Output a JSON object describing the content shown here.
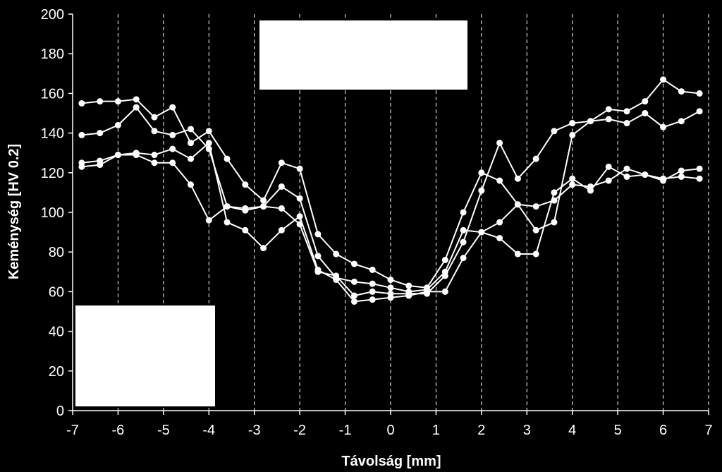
{
  "chart_data": {
    "type": "line",
    "xlabel": "Távolság [mm]",
    "ylabel": "Keménység [HV 0.2]",
    "xlim": [
      -7,
      7
    ],
    "ylim": [
      0,
      200
    ],
    "xticks": [
      -7,
      -6,
      -5,
      -4,
      -3,
      -2,
      -1,
      0,
      1,
      2,
      3,
      4,
      5,
      6,
      7
    ],
    "yticks": [
      0,
      20,
      40,
      60,
      80,
      100,
      120,
      140,
      160,
      180,
      200
    ],
    "grid": "vertical",
    "colors": {
      "background": "#000000",
      "line": "#ffffff",
      "grid": "#ffffff"
    },
    "series": [
      {
        "points": [
          [
            -6.8,
            155
          ],
          [
            -6.4,
            156
          ],
          [
            -6.0,
            156
          ],
          [
            -5.6,
            157
          ],
          [
            -5.2,
            148
          ],
          [
            -4.8,
            153
          ],
          [
            -4.4,
            135
          ],
          [
            -4.0,
            141
          ],
          [
            -3.6,
            127
          ],
          [
            -3.2,
            114
          ],
          [
            -2.8,
            106
          ],
          [
            -2.4,
            125
          ],
          [
            -2.0,
            122
          ],
          [
            -1.6,
            89
          ],
          [
            -1.2,
            79
          ],
          [
            -0.8,
            74
          ],
          [
            -0.4,
            71
          ],
          [
            0.0,
            66
          ],
          [
            0.4,
            63
          ],
          [
            0.8,
            62
          ],
          [
            1.2,
            76
          ],
          [
            1.6,
            100
          ],
          [
            2.0,
            120
          ],
          [
            2.4,
            116
          ],
          [
            2.8,
            104
          ],
          [
            3.2,
            91
          ],
          [
            3.6,
            95
          ],
          [
            4.0,
            139
          ],
          [
            4.4,
            146
          ],
          [
            4.8,
            152
          ],
          [
            5.2,
            151
          ],
          [
            5.6,
            156
          ],
          [
            6.0,
            167
          ],
          [
            6.4,
            161
          ],
          [
            6.8,
            160
          ]
        ]
      },
      {
        "points": [
          [
            -6.8,
            139
          ],
          [
            -6.4,
            140
          ],
          [
            -6.0,
            144
          ],
          [
            -5.6,
            153
          ],
          [
            -5.2,
            141
          ],
          [
            -4.8,
            139
          ],
          [
            -4.4,
            142
          ],
          [
            -4.0,
            132
          ],
          [
            -3.6,
            103
          ],
          [
            -3.2,
            102
          ],
          [
            -2.8,
            103
          ],
          [
            -2.4,
            113
          ],
          [
            -2.0,
            107
          ],
          [
            -1.6,
            78
          ],
          [
            -1.2,
            67
          ],
          [
            -0.8,
            65
          ],
          [
            -0.4,
            64
          ],
          [
            0.0,
            62
          ],
          [
            0.4,
            60
          ],
          [
            0.8,
            61
          ],
          [
            1.2,
            70
          ],
          [
            1.6,
            91
          ],
          [
            2.0,
            90
          ],
          [
            2.4,
            95
          ],
          [
            2.8,
            104
          ],
          [
            3.2,
            103
          ],
          [
            3.6,
            106
          ],
          [
            4.0,
            114
          ],
          [
            4.4,
            113
          ],
          [
            4.8,
            116
          ],
          [
            5.2,
            122
          ],
          [
            5.6,
            119
          ],
          [
            6.0,
            116
          ],
          [
            6.4,
            121
          ],
          [
            6.8,
            122
          ]
        ]
      },
      {
        "points": [
          [
            -6.8,
            125
          ],
          [
            -6.4,
            126
          ],
          [
            -6.0,
            129
          ],
          [
            -5.6,
            129
          ],
          [
            -5.2,
            125
          ],
          [
            -4.8,
            125
          ],
          [
            -4.4,
            114
          ],
          [
            -4.0,
            96
          ],
          [
            -3.6,
            103
          ],
          [
            -3.2,
            101
          ],
          [
            -2.8,
            103
          ],
          [
            -2.4,
            102
          ],
          [
            -2.0,
            94
          ],
          [
            -1.6,
            70
          ],
          [
            -1.2,
            68
          ],
          [
            -0.8,
            58
          ],
          [
            -0.4,
            60
          ],
          [
            0.0,
            59
          ],
          [
            0.4,
            59
          ],
          [
            0.8,
            59
          ],
          [
            1.2,
            68
          ],
          [
            1.6,
            85
          ],
          [
            2.0,
            111
          ],
          [
            2.4,
            135
          ],
          [
            2.8,
            117
          ],
          [
            3.2,
            127
          ],
          [
            3.6,
            141
          ],
          [
            4.0,
            145
          ],
          [
            4.4,
            146
          ],
          [
            4.8,
            147
          ],
          [
            5.2,
            145
          ],
          [
            5.6,
            150
          ],
          [
            6.0,
            143
          ],
          [
            6.4,
            146
          ],
          [
            6.8,
            151
          ]
        ]
      },
      {
        "points": [
          [
            -6.8,
            123
          ],
          [
            -6.4,
            124
          ],
          [
            -6.0,
            129
          ],
          [
            -5.6,
            130
          ],
          [
            -5.2,
            129
          ],
          [
            -4.8,
            132
          ],
          [
            -4.4,
            127
          ],
          [
            -4.0,
            135
          ],
          [
            -3.6,
            95
          ],
          [
            -3.2,
            91
          ],
          [
            -2.8,
            82
          ],
          [
            -2.4,
            91
          ],
          [
            -2.0,
            98
          ],
          [
            -1.6,
            71
          ],
          [
            -1.2,
            66
          ],
          [
            -0.8,
            55
          ],
          [
            -0.4,
            56
          ],
          [
            0.0,
            57
          ],
          [
            0.4,
            58
          ],
          [
            0.8,
            60
          ],
          [
            1.2,
            60
          ],
          [
            1.6,
            77
          ],
          [
            2.0,
            90
          ],
          [
            2.4,
            87
          ],
          [
            2.8,
            79
          ],
          [
            3.2,
            79
          ],
          [
            3.6,
            110
          ],
          [
            4.0,
            117
          ],
          [
            4.4,
            111
          ],
          [
            4.8,
            123
          ],
          [
            5.2,
            118
          ],
          [
            5.6,
            119
          ],
          [
            6.0,
            117
          ],
          [
            6.4,
            118
          ],
          [
            6.8,
            117
          ]
        ]
      }
    ]
  }
}
